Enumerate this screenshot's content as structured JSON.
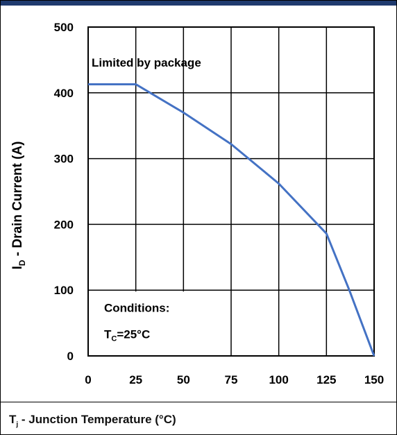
{
  "chart_data": {
    "type": "line",
    "x": [
      0,
      25,
      50,
      75,
      100,
      125,
      137,
      150
    ],
    "series": [
      {
        "values": [
          413,
          413,
          370,
          322,
          262,
          186,
          100,
          0
        ]
      }
    ],
    "xlim": [
      0,
      150
    ],
    "ylim": [
      0,
      500
    ],
    "x_ticks": [
      "0",
      "25",
      "50",
      "75",
      "100",
      "125",
      "150"
    ],
    "y_ticks": [
      "0",
      "100",
      "200",
      "300",
      "400",
      "500"
    ],
    "ylabel_main": "I",
    "ylabel_sub": "D",
    "ylabel_rest": " - Drain Current (A)",
    "grid": true,
    "line_color": "#4472c4",
    "annotations": {
      "limit_label": "Limited by package",
      "conditions_title": "Conditions:",
      "conditions_main": "T",
      "conditions_sub": "C",
      "conditions_rest": "=25°C"
    }
  },
  "footer": {
    "main": "T",
    "sub": "j",
    "rest": " - Junction Temperature (°C)"
  },
  "colors": {
    "header_bar": "#1f3a6e"
  }
}
